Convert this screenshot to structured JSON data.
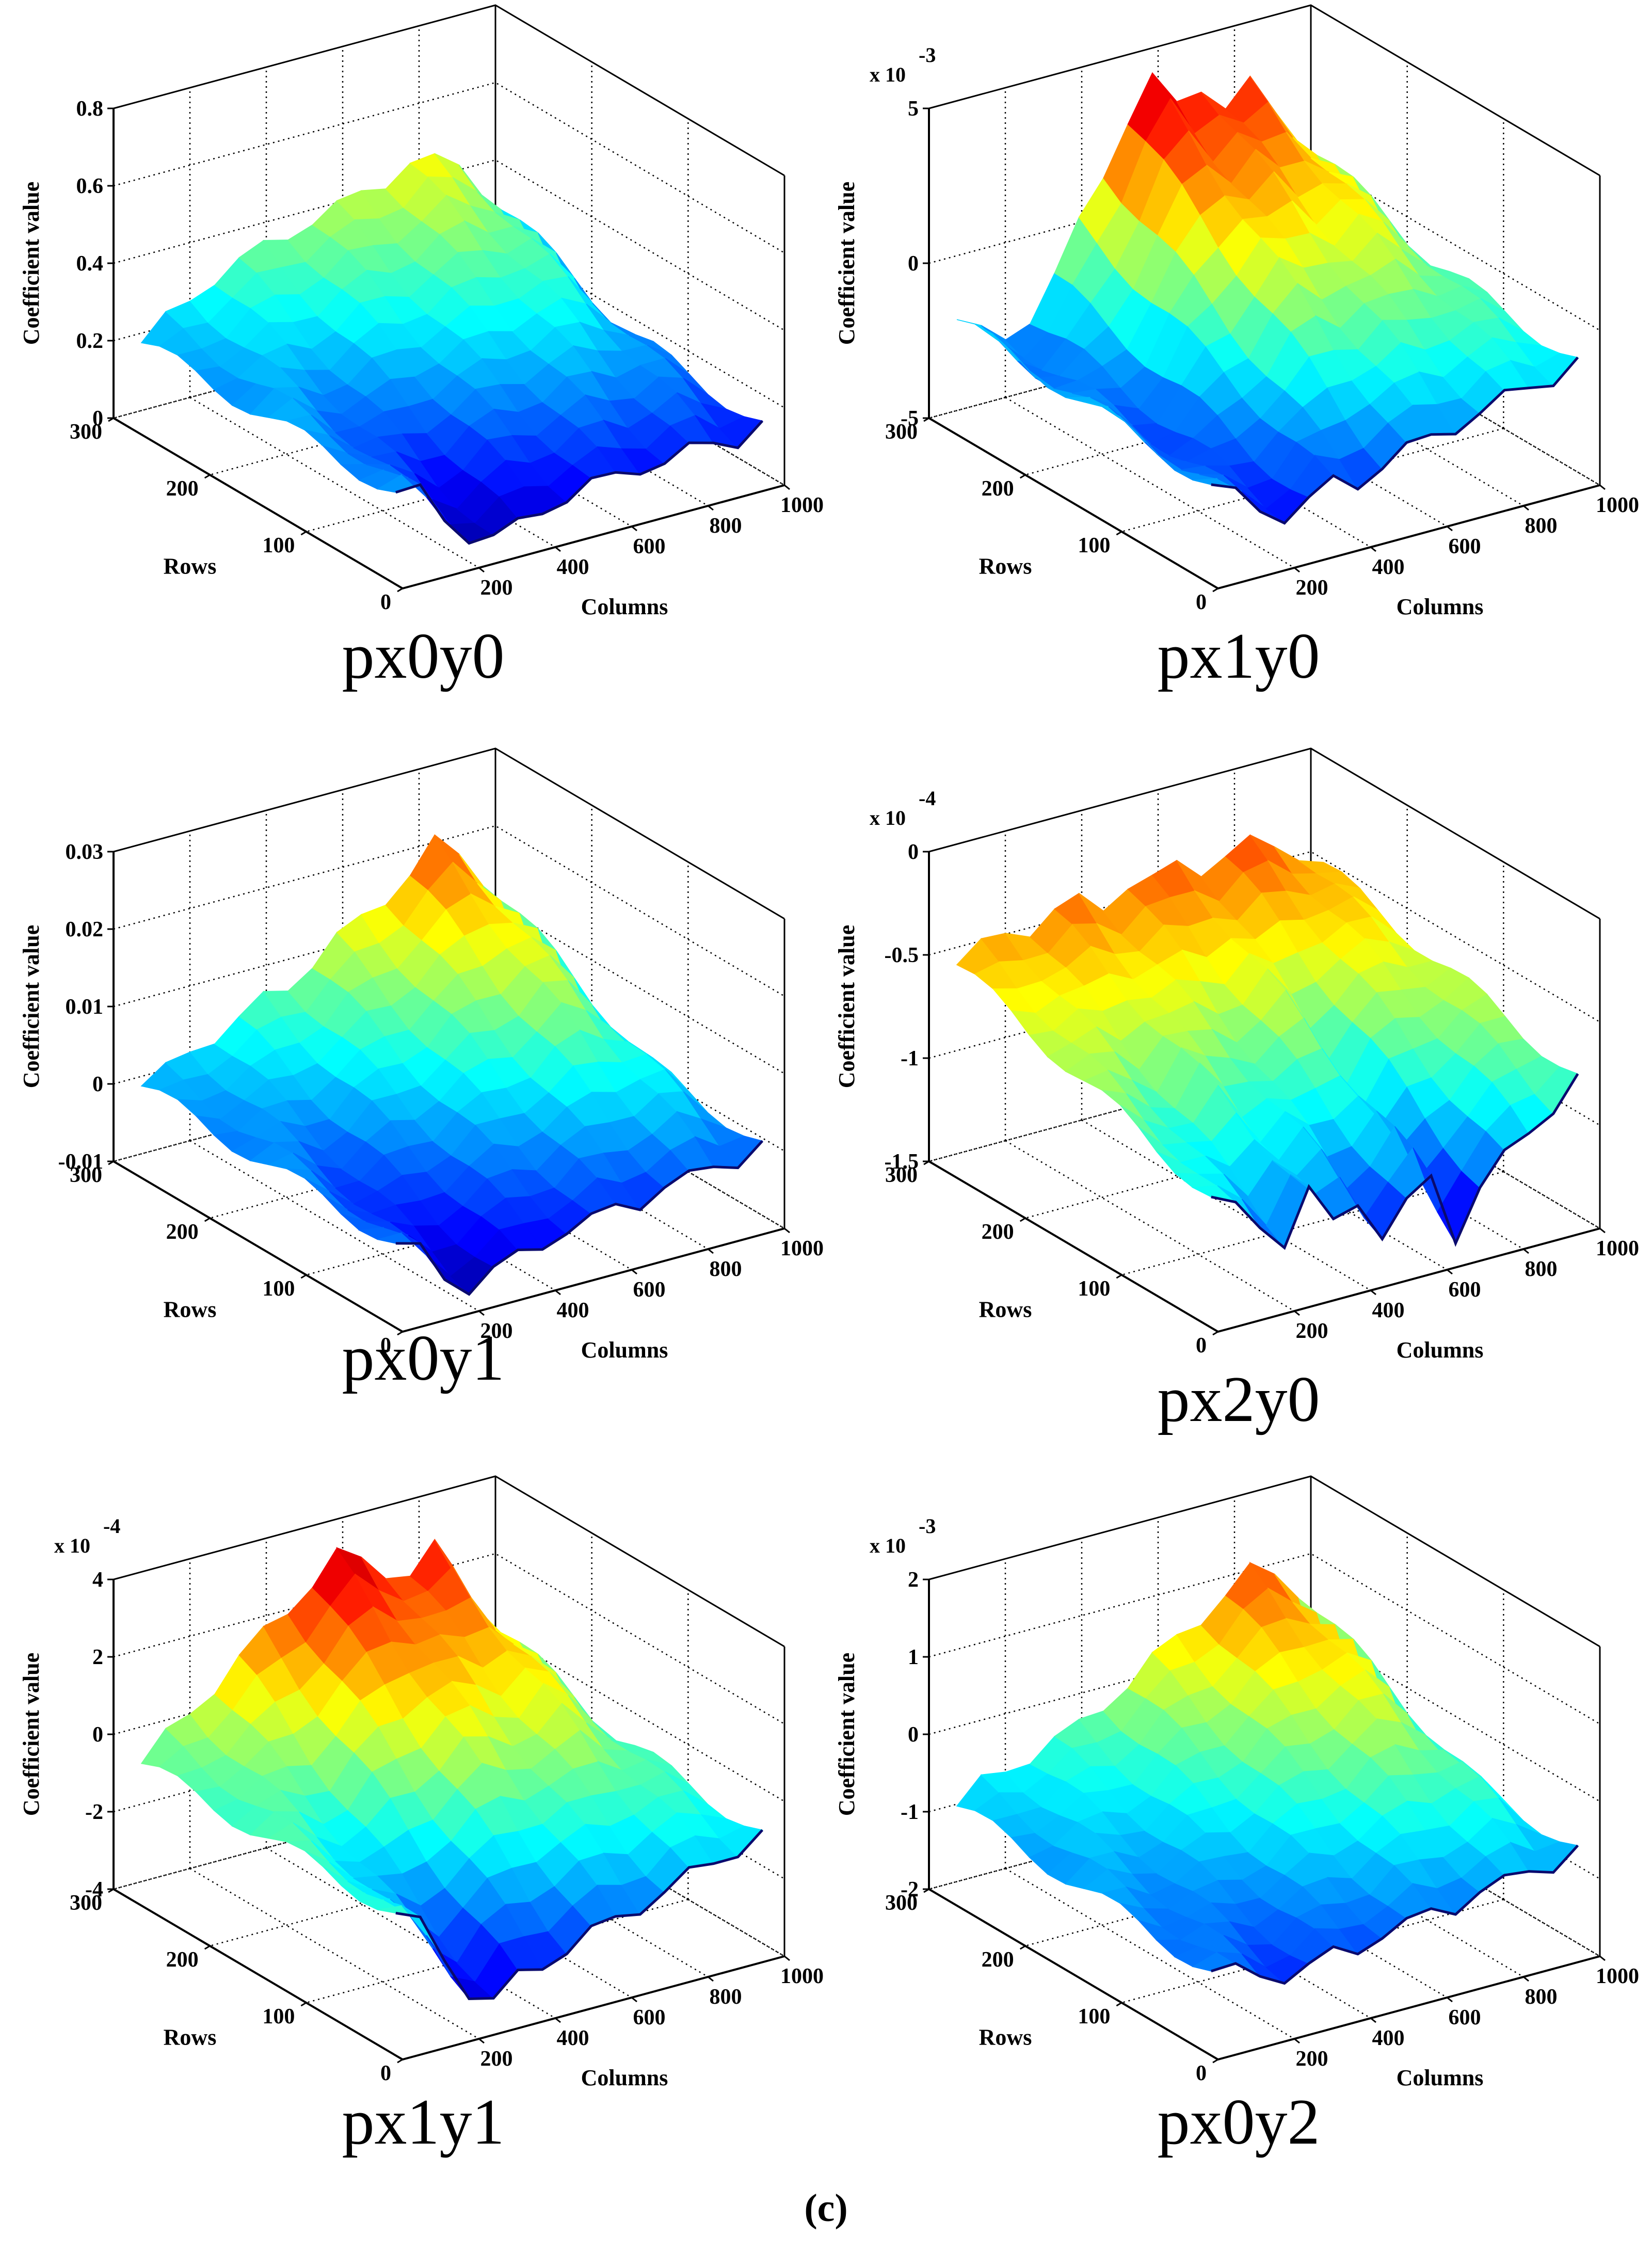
{
  "figure_label": "(c)",
  "chart_data": [
    {
      "type": "surface3d",
      "title": "px0y0",
      "zlabel": "Coefficient value",
      "xlabel": "Columns",
      "ylabel": "Rows",
      "exponent": "",
      "zticks": [
        "0",
        "0.2",
        "0.4",
        "0.6",
        "0.8"
      ],
      "zlim": [
        0,
        0.8
      ],
      "xticks": [
        "200",
        "400",
        "600",
        "800",
        "1000"
      ],
      "xlim": [
        0,
        1000
      ],
      "yticks": [
        "0",
        "100",
        "200",
        "300"
      ],
      "ylim": [
        0,
        300
      ],
      "front_edge": [
        0.22,
        0.2,
        0.12,
        0.06,
        0.03,
        0.05,
        0.08,
        0.09,
        0.1,
        0.11,
        0.12,
        0.11,
        0.12,
        0.13,
        0.12,
        0.14
      ],
      "back_edge": [
        0.22,
        0.26,
        0.3,
        0.34,
        0.36,
        0.38,
        0.4,
        0.42,
        0.43,
        0.45,
        0.47,
        0.5,
        0.48,
        0.46,
        0.38,
        0.2
      ]
    },
    {
      "type": "surface3d",
      "title": "px1y0",
      "zlabel": "Coefficient value",
      "xlabel": "Columns",
      "ylabel": "Rows",
      "exponent": "-3",
      "zticks": [
        "-5",
        "0",
        "5"
      ],
      "zlim": [
        -5,
        5
      ],
      "xticks": [
        "200",
        "400",
        "600",
        "800",
        "1000"
      ],
      "xlim": [
        0,
        1000
      ],
      "yticks": [
        "0",
        "100",
        "200",
        "300"
      ],
      "ylim": [
        0,
        300
      ],
      "front_edge": [
        -2.0,
        -2.6,
        -3.2,
        -3.6,
        -3.4,
        -3.0,
        -3.2,
        -2.8,
        -2.6,
        -2.4,
        -2.2,
        -2.0,
        -1.8,
        -1.6,
        -1.5,
        -1.2
      ],
      "back_edge": [
        -1.5,
        -2.2,
        -2.5,
        -2.0,
        -1.0,
        0.5,
        2.0,
        3.5,
        4.5,
        3.5,
        4.0,
        3.0,
        3.5,
        2.5,
        1.5,
        -0.5
      ]
    },
    {
      "type": "surface3d",
      "title": "px0y1",
      "zlabel": "Coefficient value",
      "xlabel": "Columns",
      "ylabel": "Rows",
      "exponent": "",
      "zticks": [
        "-0.01",
        "0",
        "0.01",
        "0.02",
        "0.03"
      ],
      "zlim": [
        -0.01,
        0.03
      ],
      "xticks": [
        "200",
        "400",
        "600",
        "800",
        "1000"
      ],
      "xlim": [
        0,
        1000
      ],
      "yticks": [
        "0",
        "100",
        "200",
        "300"
      ],
      "ylim": [
        0,
        300
      ],
      "front_edge": [
        0.0,
        -0.002,
        -0.006,
        -0.008,
        -0.007,
        -0.006,
        -0.005,
        -0.004,
        -0.004,
        -0.003,
        -0.003,
        -0.002,
        -0.002,
        -0.001,
        -0.001,
        0.0
      ],
      "back_edge": [
        0.001,
        0.002,
        0.004,
        0.005,
        0.006,
        0.008,
        0.009,
        0.011,
        0.013,
        0.015,
        0.017,
        0.019,
        0.022,
        0.02,
        0.016,
        0.004
      ]
    },
    {
      "type": "surface3d",
      "title": "px2y0",
      "zlabel": "Coefficient value",
      "xlabel": "Columns",
      "ylabel": "Rows",
      "exponent": "-4",
      "zticks": [
        "-1.5",
        "-1",
        "-0.5",
        "0"
      ],
      "zlim": [
        -1.5,
        0
      ],
      "xticks": [
        "200",
        "400",
        "600",
        "800",
        "1000"
      ],
      "xlim": [
        0,
        1000
      ],
      "yticks": [
        "0",
        "100",
        "200",
        "300"
      ],
      "ylim": [
        0,
        300
      ],
      "front_edge": [
        -0.9,
        -1.0,
        -1.1,
        -1.2,
        -1.0,
        -1.2,
        -1.1,
        -1.3,
        -1.2,
        -1.1,
        -1.4,
        -1.2,
        -1.1,
        -1.0,
        -0.9,
        -0.8
      ],
      "back_edge": [
        -0.5,
        -0.45,
        -0.4,
        -0.42,
        -0.38,
        -0.35,
        -0.4,
        -0.33,
        -0.36,
        -0.3,
        -0.35,
        -0.32,
        -0.3,
        -0.34,
        -0.4,
        -0.5
      ]
    },
    {
      "type": "surface3d",
      "title": "px1y1",
      "zlabel": "Coefficient value",
      "xlabel": "Columns",
      "ylabel": "Rows",
      "exponent": "-4",
      "zticks": [
        "-4",
        "-2",
        "0",
        "2",
        "4"
      ],
      "zlim": [
        -4,
        4
      ],
      "xticks": [
        "200",
        "400",
        "600",
        "800",
        "1000"
      ],
      "xlim": [
        0,
        1000
      ],
      "yticks": [
        "0",
        "100",
        "200",
        "300"
      ],
      "ylim": [
        0,
        300
      ],
      "front_edge": [
        -0.5,
        -1.0,
        -2.0,
        -3.0,
        -3.5,
        -3.0,
        -2.8,
        -2.6,
        -2.4,
        -2.2,
        -2.0,
        -1.8,
        -1.6,
        -1.4,
        -1.2,
        -1.0
      ],
      "back_edge": [
        -0.5,
        0.0,
        0.5,
        1.0,
        1.5,
        2.0,
        2.5,
        3.0,
        3.5,
        3.2,
        2.8,
        2.5,
        3.0,
        2.0,
        1.0,
        -0.5
      ]
    },
    {
      "type": "surface3d",
      "title": "px0y2",
      "zlabel": "Coefficient value",
      "xlabel": "Columns",
      "ylabel": "Rows",
      "exponent": "-3",
      "zticks": [
        "-2",
        "-1",
        "0",
        "1",
        "2"
      ],
      "zlim": [
        -2,
        2
      ],
      "xticks": [
        "200",
        "400",
        "600",
        "800",
        "1000"
      ],
      "xlim": [
        0,
        1000
      ],
      "yticks": [
        "0",
        "100",
        "200",
        "300"
      ],
      "ylim": [
        0,
        300
      ],
      "front_edge": [
        -1.0,
        -1.1,
        -1.2,
        -1.3,
        -1.3,
        -1.2,
        -1.2,
        -1.1,
        -1.1,
        -1.0,
        -1.0,
        -0.9,
        -0.9,
        -0.8,
        -0.8,
        -0.7
      ],
      "back_edge": [
        -0.8,
        -0.6,
        -0.5,
        -0.4,
        -0.3,
        -0.2,
        0.0,
        0.2,
        0.4,
        0.6,
        0.8,
        1.0,
        1.2,
        1.1,
        0.8,
        -0.5
      ]
    }
  ]
}
